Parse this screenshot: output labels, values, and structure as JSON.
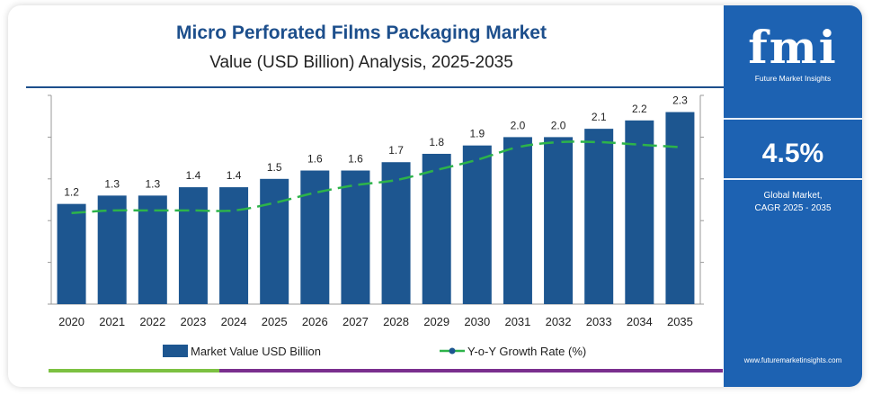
{
  "header": {
    "title": "Micro Perforated Films Packaging Market",
    "subtitle": "Value (USD Billion) Analysis, 2025-2035"
  },
  "brand": {
    "logo_text": "fmi",
    "tagline": "Future Market Insights",
    "url": "www.futuremarketinsights.com"
  },
  "stat": {
    "value": "4.5%",
    "label_line1": "Global Market,",
    "label_line2": "CAGR 2025 - 2035"
  },
  "colors": {
    "bar": "#1d5690",
    "line": "#2db34a",
    "panel": "#1d62b2",
    "title": "#1d4f8c"
  },
  "chart_data": {
    "type": "bar",
    "categories": [
      "2020",
      "2021",
      "2022",
      "2023",
      "2024",
      "2025",
      "2026",
      "2027",
      "2028",
      "2029",
      "2030",
      "2031",
      "2032",
      "2033",
      "2034",
      "2035"
    ],
    "series": [
      {
        "name": "Market Value USD Billion",
        "type": "bar",
        "values": [
          1.2,
          1.3,
          1.3,
          1.4,
          1.4,
          1.5,
          1.6,
          1.6,
          1.7,
          1.8,
          1.9,
          2.0,
          2.0,
          2.1,
          2.2,
          2.3
        ],
        "labels": [
          "1.2",
          "1.3",
          "1.3",
          "1.4",
          "1.4",
          "1.5",
          "1.6",
          "1.6",
          "1.7",
          "1.8",
          "1.9",
          "2.0",
          "2.0",
          "2.1",
          "2.2",
          "2.3"
        ]
      },
      {
        "name": "Y-o-Y Growth Rate (%)",
        "type": "line",
        "values": [
          3.6,
          3.7,
          3.7,
          3.7,
          3.7,
          4.0,
          4.4,
          4.7,
          4.9,
          5.3,
          5.7,
          6.2,
          6.4,
          6.4,
          6.3,
          6.2
        ]
      }
    ],
    "ylim": [
      0,
      2.5
    ],
    "line_ylim": [
      0,
      8
    ],
    "grid": false,
    "legend": "bottom"
  }
}
